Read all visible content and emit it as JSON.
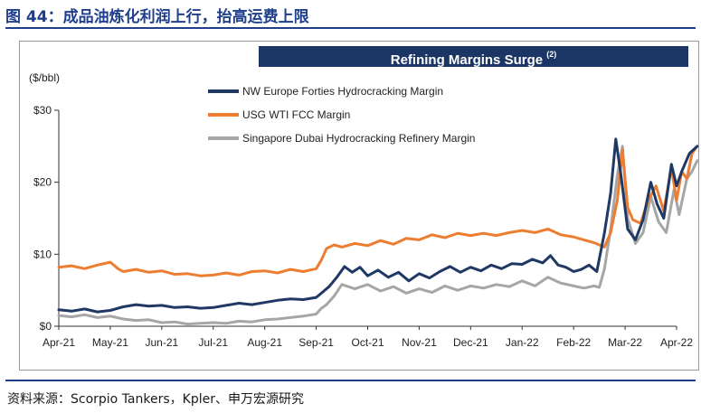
{
  "figure_title": "图 44：成品油炼化利润上行，抬高运费上限",
  "source_note": "资料来源：Scorpio Tankers，Kpler、申万宏源研究",
  "chart_data": {
    "type": "line",
    "title": "Refining Margins Surge",
    "title_superscript": "(2)",
    "ylabel": "($/bbl)",
    "ylim": [
      0,
      30
    ],
    "y_ticks": [
      0,
      10,
      20,
      30
    ],
    "y_tick_labels": [
      "$0",
      "$10",
      "$20",
      "$30"
    ],
    "x_tick_labels": [
      "Apr-21",
      "May-21",
      "Jun-21",
      "Jul-21",
      "Aug-21",
      "Sep-21",
      "Oct-21",
      "Nov-21",
      "Dec-21",
      "Jan-22",
      "Feb-22",
      "Mar-22",
      "Apr-22"
    ],
    "x_range_months": [
      0,
      12
    ],
    "legend_position": "top-center",
    "series": [
      {
        "name": "NW Europe Forties Hydrocracking Margin",
        "color": "#1f3864",
        "points": [
          [
            0,
            2.3
          ],
          [
            0.25,
            2.1
          ],
          [
            0.5,
            2.4
          ],
          [
            0.75,
            2.0
          ],
          [
            1,
            2.2
          ],
          [
            1.25,
            2.7
          ],
          [
            1.5,
            3.0
          ],
          [
            1.75,
            2.8
          ],
          [
            2,
            2.9
          ],
          [
            2.25,
            2.6
          ],
          [
            2.5,
            2.7
          ],
          [
            2.75,
            2.5
          ],
          [
            3,
            2.6
          ],
          [
            3.25,
            2.9
          ],
          [
            3.5,
            3.2
          ],
          [
            3.75,
            3.0
          ],
          [
            4,
            3.3
          ],
          [
            4.25,
            3.6
          ],
          [
            4.5,
            3.8
          ],
          [
            4.75,
            3.7
          ],
          [
            5,
            4.0
          ],
          [
            5.1,
            4.6
          ],
          [
            5.25,
            5.5
          ],
          [
            5.4,
            6.8
          ],
          [
            5.55,
            8.3
          ],
          [
            5.7,
            7.5
          ],
          [
            5.85,
            8.2
          ],
          [
            6,
            7.0
          ],
          [
            6.2,
            7.8
          ],
          [
            6.4,
            6.8
          ],
          [
            6.6,
            7.5
          ],
          [
            6.8,
            6.3
          ],
          [
            7,
            7.3
          ],
          [
            7.2,
            6.7
          ],
          [
            7.4,
            7.6
          ],
          [
            7.6,
            8.3
          ],
          [
            7.8,
            7.5
          ],
          [
            8,
            8.2
          ],
          [
            8.2,
            7.7
          ],
          [
            8.4,
            8.5
          ],
          [
            8.6,
            8.0
          ],
          [
            8.8,
            8.7
          ],
          [
            9,
            8.6
          ],
          [
            9.2,
            9.3
          ],
          [
            9.4,
            8.8
          ],
          [
            9.55,
            9.8
          ],
          [
            9.7,
            8.5
          ],
          [
            9.85,
            8.2
          ],
          [
            10,
            7.6
          ],
          [
            10.15,
            7.9
          ],
          [
            10.3,
            8.5
          ],
          [
            10.45,
            7.6
          ],
          [
            10.6,
            13.0
          ],
          [
            10.72,
            18.5
          ],
          [
            10.82,
            26.0
          ],
          [
            10.92,
            21.0
          ],
          [
            11.05,
            13.5
          ],
          [
            11.2,
            12.0
          ],
          [
            11.35,
            14.8
          ],
          [
            11.5,
            20.0
          ],
          [
            11.62,
            17.0
          ],
          [
            11.75,
            15.0
          ],
          [
            11.9,
            22.5
          ],
          [
            12,
            19.5
          ],
          [
            12.1,
            21.5
          ],
          [
            12.25,
            24.0
          ],
          [
            12.4,
            25.0
          ]
        ]
      },
      {
        "name": "USG WTI FCC Margin",
        "color": "#ed7d31",
        "points": [
          [
            0,
            8.2
          ],
          [
            0.25,
            8.4
          ],
          [
            0.5,
            8.0
          ],
          [
            0.75,
            8.5
          ],
          [
            1,
            8.9
          ],
          [
            1.15,
            8.0
          ],
          [
            1.25,
            7.6
          ],
          [
            1.5,
            7.9
          ],
          [
            1.75,
            7.5
          ],
          [
            2,
            7.7
          ],
          [
            2.25,
            7.2
          ],
          [
            2.5,
            7.3
          ],
          [
            2.75,
            7.0
          ],
          [
            3,
            7.1
          ],
          [
            3.25,
            7.4
          ],
          [
            3.5,
            7.1
          ],
          [
            3.75,
            7.6
          ],
          [
            4,
            7.7
          ],
          [
            4.25,
            7.4
          ],
          [
            4.5,
            7.9
          ],
          [
            4.75,
            7.6
          ],
          [
            5,
            8.0
          ],
          [
            5.1,
            9.2
          ],
          [
            5.2,
            10.8
          ],
          [
            5.35,
            11.3
          ],
          [
            5.5,
            11.0
          ],
          [
            5.75,
            11.5
          ],
          [
            6,
            11.2
          ],
          [
            6.25,
            11.9
          ],
          [
            6.5,
            11.4
          ],
          [
            6.75,
            12.2
          ],
          [
            7,
            12.0
          ],
          [
            7.25,
            12.7
          ],
          [
            7.5,
            12.3
          ],
          [
            7.75,
            12.9
          ],
          [
            8,
            12.6
          ],
          [
            8.25,
            12.9
          ],
          [
            8.5,
            12.6
          ],
          [
            8.75,
            13.0
          ],
          [
            9,
            13.3
          ],
          [
            9.25,
            13.0
          ],
          [
            9.5,
            13.5
          ],
          [
            9.75,
            12.7
          ],
          [
            10,
            12.4
          ],
          [
            10.2,
            12.0
          ],
          [
            10.4,
            11.6
          ],
          [
            10.5,
            11.3
          ],
          [
            10.6,
            11.0
          ],
          [
            10.72,
            13.0
          ],
          [
            10.85,
            17.5
          ],
          [
            10.95,
            24.5
          ],
          [
            11.05,
            16.5
          ],
          [
            11.15,
            14.8
          ],
          [
            11.3,
            14.3
          ],
          [
            11.45,
            17.5
          ],
          [
            11.6,
            19.5
          ],
          [
            11.75,
            16.0
          ],
          [
            11.9,
            22.0
          ],
          [
            12,
            17.5
          ],
          [
            12.1,
            21.5
          ],
          [
            12.2,
            20.5
          ],
          [
            12.3,
            24.0
          ],
          [
            12.4,
            25.0
          ]
        ]
      },
      {
        "name": "Singapore Dubai Hydrocracking Refinery Margin",
        "color": "#a6a6a6",
        "points": [
          [
            0,
            1.5
          ],
          [
            0.25,
            1.3
          ],
          [
            0.5,
            1.6
          ],
          [
            0.75,
            1.2
          ],
          [
            1,
            1.4
          ],
          [
            1.25,
            1.0
          ],
          [
            1.5,
            0.8
          ],
          [
            1.75,
            0.9
          ],
          [
            2,
            0.5
          ],
          [
            2.25,
            0.6
          ],
          [
            2.5,
            0.3
          ],
          [
            2.75,
            0.4
          ],
          [
            3,
            0.5
          ],
          [
            3.25,
            0.4
          ],
          [
            3.5,
            0.7
          ],
          [
            3.75,
            0.6
          ],
          [
            4,
            0.9
          ],
          [
            4.25,
            1.0
          ],
          [
            4.5,
            1.2
          ],
          [
            4.75,
            1.4
          ],
          [
            5,
            1.7
          ],
          [
            5.1,
            2.5
          ],
          [
            5.2,
            3.0
          ],
          [
            5.35,
            4.2
          ],
          [
            5.5,
            5.8
          ],
          [
            5.75,
            5.2
          ],
          [
            6,
            5.8
          ],
          [
            6.25,
            4.9
          ],
          [
            6.5,
            5.5
          ],
          [
            6.75,
            4.6
          ],
          [
            7,
            5.2
          ],
          [
            7.25,
            4.7
          ],
          [
            7.5,
            5.6
          ],
          [
            7.75,
            5.0
          ],
          [
            8,
            5.6
          ],
          [
            8.25,
            5.3
          ],
          [
            8.5,
            5.8
          ],
          [
            8.75,
            5.5
          ],
          [
            9,
            6.3
          ],
          [
            9.25,
            5.6
          ],
          [
            9.5,
            6.8
          ],
          [
            9.75,
            6.0
          ],
          [
            10,
            5.6
          ],
          [
            10.2,
            5.3
          ],
          [
            10.4,
            5.6
          ],
          [
            10.5,
            5.4
          ],
          [
            10.6,
            8.0
          ],
          [
            10.72,
            13.5
          ],
          [
            10.85,
            21.0
          ],
          [
            10.95,
            25.0
          ],
          [
            11.05,
            15.0
          ],
          [
            11.2,
            11.5
          ],
          [
            11.35,
            13.0
          ],
          [
            11.5,
            18.0
          ],
          [
            11.65,
            14.5
          ],
          [
            11.8,
            13.0
          ],
          [
            11.95,
            19.0
          ],
          [
            12.05,
            15.5
          ],
          [
            12.2,
            20.5
          ],
          [
            12.3,
            21.5
          ],
          [
            12.4,
            23.0
          ]
        ]
      }
    ]
  }
}
